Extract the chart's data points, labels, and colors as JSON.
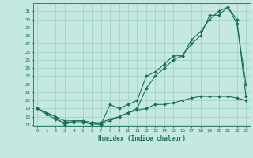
{
  "xlabel": "Humidex (Indice chaleur)",
  "bg_color": "#c5e8e0",
  "line_color": "#1a6e5e",
  "grid_color": "#9ecfc4",
  "xlim": [
    -0.5,
    23.5
  ],
  "ylim": [
    16.8,
    32.0
  ],
  "xticks": [
    0,
    1,
    2,
    3,
    4,
    5,
    6,
    7,
    8,
    9,
    10,
    11,
    12,
    13,
    14,
    15,
    16,
    17,
    18,
    19,
    20,
    21,
    22,
    23
  ],
  "yticks": [
    17,
    18,
    19,
    20,
    21,
    22,
    23,
    24,
    25,
    26,
    27,
    28,
    29,
    30,
    31
  ],
  "line1_x": [
    0,
    1,
    2,
    3,
    4,
    5,
    6,
    7,
    8,
    9,
    10,
    11,
    12,
    13,
    14,
    15,
    16,
    17,
    18,
    19,
    20,
    21,
    22,
    23
  ],
  "line1_y": [
    19,
    18.5,
    18,
    17,
    17.5,
    17.5,
    17.3,
    17,
    19.5,
    19,
    19.5,
    20,
    23,
    23.5,
    24.5,
    25.5,
    25.5,
    27.5,
    28.5,
    30,
    31,
    31.5,
    29.5,
    22
  ],
  "line2_x": [
    0,
    1,
    2,
    3,
    4,
    5,
    6,
    7,
    8,
    9,
    10,
    11,
    12,
    13,
    14,
    15,
    16,
    17,
    18,
    19,
    20,
    21,
    22,
    23
  ],
  "line2_y": [
    19,
    18.3,
    17.7,
    17.2,
    17.3,
    17.3,
    17.1,
    17.1,
    17.5,
    18.0,
    18.5,
    19.0,
    21.5,
    23.0,
    24.0,
    25.0,
    25.5,
    27.0,
    28.0,
    30.5,
    30.5,
    31.5,
    30.0,
    20.5
  ],
  "line3_x": [
    0,
    1,
    2,
    3,
    4,
    5,
    6,
    7,
    8,
    9,
    10,
    11,
    12,
    13,
    14,
    15,
    16,
    17,
    18,
    19,
    20,
    21,
    22,
    23
  ],
  "line3_y": [
    19,
    18.5,
    18.0,
    17.5,
    17.5,
    17.5,
    17.3,
    17.3,
    17.7,
    18.0,
    18.5,
    18.8,
    19.0,
    19.5,
    19.5,
    19.7,
    20.0,
    20.3,
    20.5,
    20.5,
    20.5,
    20.5,
    20.3,
    20.0
  ]
}
